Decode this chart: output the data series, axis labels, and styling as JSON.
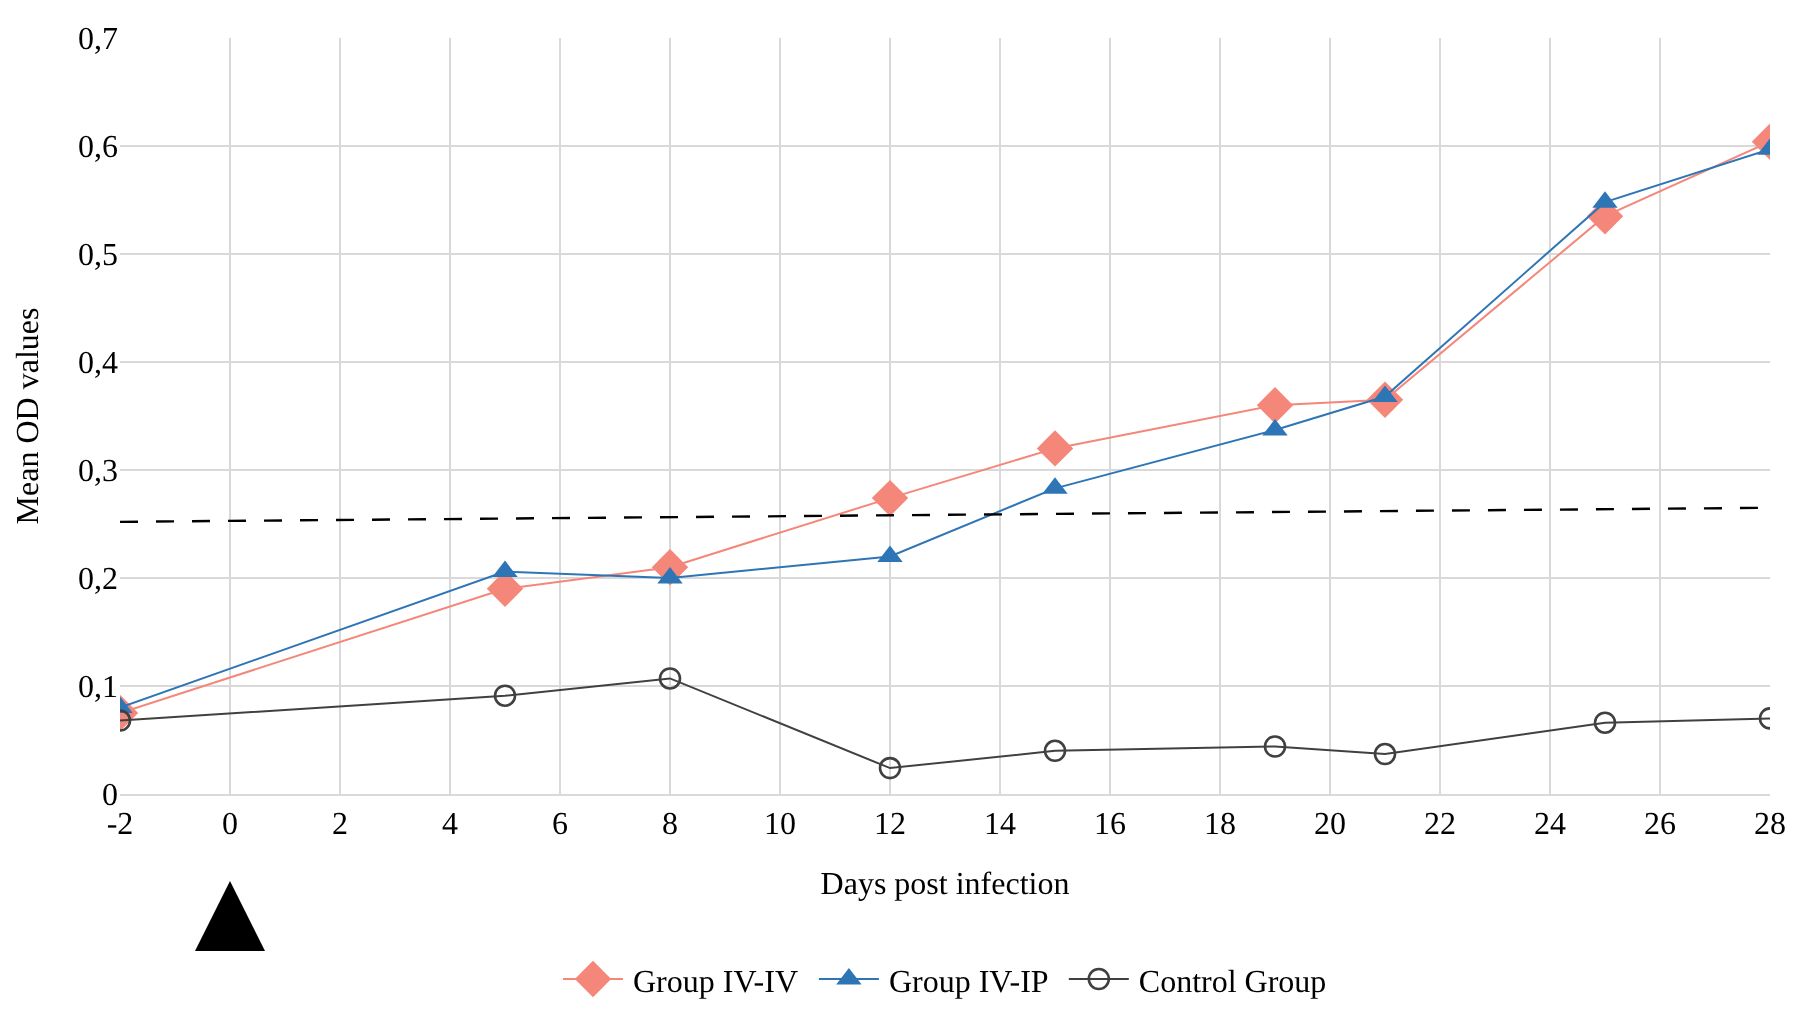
{
  "chart_data": {
    "type": "line",
    "xlabel": "Days post infection",
    "ylabel": "Mean OD values",
    "x": [
      -2,
      5,
      8,
      12,
      15,
      19,
      21,
      25,
      28
    ],
    "series": [
      {
        "name": "Group IV-IV",
        "color": "#f4877a",
        "marker": "diamond",
        "values": [
          0.075,
          0.19,
          0.21,
          0.274,
          0.32,
          0.36,
          0.365,
          0.535,
          0.604
        ]
      },
      {
        "name": "Group IV-IP",
        "color": "#2e75b6",
        "marker": "triangle",
        "values": [
          0.08,
          0.206,
          0.2,
          0.22,
          0.283,
          0.337,
          0.368,
          0.548,
          0.597
        ]
      },
      {
        "name": "Control Group",
        "color": "#404040",
        "marker": "circle",
        "values": [
          0.068,
          0.091,
          0.107,
          0.024,
          0.04,
          0.044,
          0.037,
          0.066,
          0.07
        ]
      },
      {
        "type": "line",
        "color": "#000000",
        "line_style": "dashed",
        "marker": "none",
        "x": [
          -2,
          28
        ],
        "values": [
          0.252,
          0.265
        ]
      }
    ],
    "xlim": [
      -2,
      28
    ],
    "xticks": [
      -2,
      0,
      2,
      4,
      6,
      8,
      10,
      12,
      14,
      16,
      18,
      20,
      22,
      24,
      26,
      28
    ],
    "ylim": [
      0,
      0.7
    ],
    "yticks": [
      {
        "value": 0,
        "label": "0"
      },
      {
        "value": 0.1,
        "label": "0,1"
      },
      {
        "value": 0.2,
        "label": "0,2"
      },
      {
        "value": 0.3,
        "label": "0,3"
      },
      {
        "value": 0.4,
        "label": "0,4"
      },
      {
        "value": 0.5,
        "label": "0,5"
      },
      {
        "value": 0.6,
        "label": "0,6"
      },
      {
        "value": 0.7,
        "label": "0,7"
      }
    ],
    "grid": true,
    "legend": "bottom"
  }
}
